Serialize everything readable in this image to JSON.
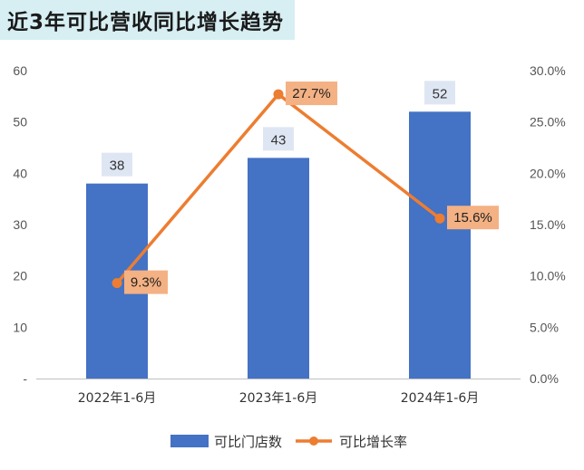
{
  "title": "近3年可比营收同比增长趋势",
  "chart_data": {
    "type": "bar",
    "categories": [
      "2022年1-6月",
      "2023年1-6月",
      "2024年1-6月"
    ],
    "series": [
      {
        "name": "可比门店数",
        "type": "bar",
        "axis": "left",
        "color": "#4472C4",
        "values": [
          38,
          43,
          52
        ],
        "labels": [
          "38",
          "43",
          "52"
        ]
      },
      {
        "name": "可比增长率",
        "type": "line",
        "axis": "right",
        "color": "#ED7D31",
        "values": [
          9.3,
          27.7,
          15.6
        ],
        "labels": [
          "9.3%",
          "27.7%",
          "15.6%"
        ]
      }
    ],
    "y_left": {
      "ylim": [
        0,
        60
      ],
      "ticks": [
        0,
        10,
        20,
        30,
        40,
        50,
        60
      ],
      "tick_labels": [
        "-",
        "10",
        "20",
        "30",
        "40",
        "50",
        "60"
      ]
    },
    "y_right": {
      "ylim": [
        0,
        30
      ],
      "ticks": [
        0,
        5,
        10,
        15,
        20,
        25,
        30
      ],
      "tick_labels": [
        "0.0%",
        "5.0%",
        "10.0%",
        "15.0%",
        "20.0%",
        "25.0%",
        "30.0%"
      ]
    },
    "grid": false,
    "legend": "bottom"
  }
}
